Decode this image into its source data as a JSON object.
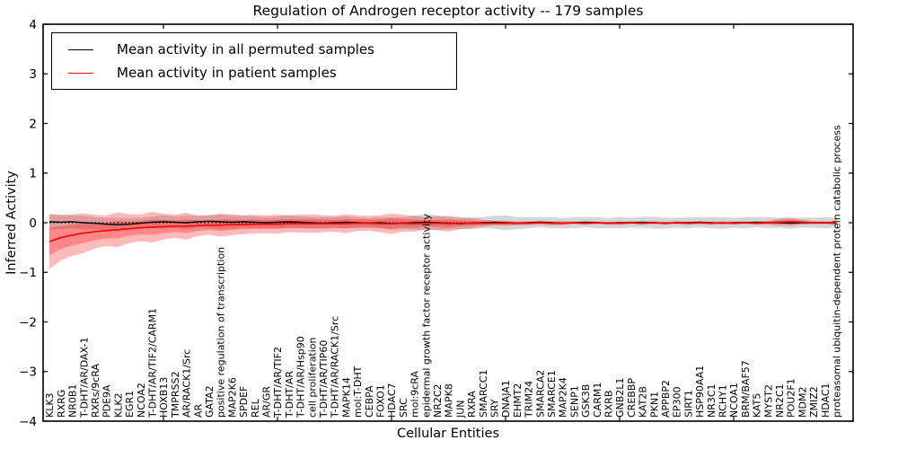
{
  "figure": {
    "title": "Regulation of Androgen receptor activity -- 179 samples",
    "xlabel": "Cellular Entities",
    "ylabel": "Inferred Activity"
  },
  "legend": {
    "position": "upper left",
    "entries": [
      {
        "label": "Mean activity in all permuted samples",
        "color": "#000000"
      },
      {
        "label": "Mean activity in patient samples",
        "color": "#ff0000"
      }
    ]
  },
  "chart_data": {
    "type": "line",
    "title": "Regulation of Androgen receptor activity -- 179 samples",
    "xlabel": "Cellular Entities",
    "ylabel": "Inferred Activity",
    "ylim": [
      -4,
      4
    ],
    "y_ticks": [
      -4,
      -3,
      -2,
      -1,
      0,
      1,
      2,
      3,
      4
    ],
    "y_tick_labels": [
      "−4",
      "−3",
      "−2",
      "−1",
      "0",
      "1",
      "2",
      "3",
      "4"
    ],
    "x_major_tick_every": 10,
    "grid": false,
    "legend_position": "upper left",
    "zero_reference_line": {
      "y": 0,
      "style": "dotted",
      "color": "#000000"
    },
    "categories": [
      "KLK3",
      "RXRG",
      "NR0B1",
      "T-DHT/AR/DAX-1",
      "RXRs/9cRA",
      "PDE9A",
      "KLK2",
      "EGR1",
      "NCOA2",
      "T-DHT/AR/TIF2/CARM1",
      "HOXB13",
      "TMPRSS2",
      "AR/RACK1/Src",
      "AR",
      "GATA2",
      "positive regulation of transcription",
      "MAP2K6",
      "SPDEF",
      "REL",
      "AR/GR",
      "T-DHT/AR/TIF2",
      "T-DHT/AR",
      "T-DHT/AR/Hsp90",
      "cell proliferation",
      "T-DHT/AR/TIP60",
      "T-DHT/AR/RACK1/Src",
      "MAPK14",
      "mol:T-DHT",
      "CEBPA",
      "FOXO1",
      "HDAC7",
      "SRC",
      "mol:9cRA",
      "epidermal growth factor receptor activity",
      "NR2C2",
      "MAPK8",
      "JUN",
      "RXRA",
      "SMARCC1",
      "SRY",
      "DNAJA1",
      "EHMT2",
      "TRIM24",
      "SMARCA2",
      "SMARCE1",
      "MAP2K4",
      "SENP1",
      "GSK3B",
      "CARM1",
      "RXRB",
      "GNB2L1",
      "CREBBP",
      "KAT2B",
      "PKN1",
      "APPBP2",
      "EP300",
      "SIRT1",
      "HSP90AA1",
      "NR3C1",
      "RCHY1",
      "NCOA1",
      "BRM/BAF57",
      "KAT5",
      "MYST2",
      "NR2C1",
      "POU2F1",
      "MDM2",
      "ZMIZ2",
      "HDAC1",
      "proteasomal ubiquitin-dependent protein catabolic process"
    ],
    "series": [
      {
        "name": "Mean activity in all permuted samples",
        "color": "#000000",
        "line_width": 1.4,
        "band_color": "rgba(0,0,0,0.16)",
        "band_inner_factor": 1,
        "values": [
          0.02,
          0.01,
          0.02,
          0.0,
          -0.01,
          -0.03,
          -0.04,
          -0.03,
          -0.01,
          0.01,
          0.02,
          0.01,
          0.0,
          0.02,
          0.03,
          0.02,
          0.01,
          0.02,
          0.01,
          0.0,
          0.01,
          0.02,
          0.01,
          0.0,
          -0.01,
          0.0,
          0.01,
          0.0,
          -0.01,
          0.0,
          -0.02,
          -0.01,
          0.0,
          0.01,
          0.0,
          -0.01,
          -0.02,
          -0.01,
          0.0,
          0.01,
          0.0,
          -0.01,
          0.0,
          0.01,
          0.0,
          -0.01,
          0.0,
          0.01,
          0.0,
          -0.01,
          0.0,
          0.0,
          0.01,
          0.0,
          -0.01,
          0.0,
          0.0,
          0.01,
          0.0,
          -0.01,
          0.0,
          0.0,
          0.01,
          0.0,
          0.0,
          -0.01,
          0.0,
          0.0,
          0.0,
          0.0
        ],
        "band": [
          0.15,
          0.14,
          0.13,
          0.14,
          0.12,
          0.13,
          0.14,
          0.12,
          0.11,
          0.12,
          0.13,
          0.12,
          0.14,
          0.12,
          0.13,
          0.15,
          0.13,
          0.12,
          0.12,
          0.11,
          0.12,
          0.13,
          0.12,
          0.11,
          0.12,
          0.11,
          0.12,
          0.11,
          0.1,
          0.11,
          0.13,
          0.12,
          0.14,
          0.17,
          0.15,
          0.12,
          0.11,
          0.12,
          0.11,
          0.13,
          0.15,
          0.12,
          0.11,
          0.1,
          0.11,
          0.1,
          0.11,
          0.1,
          0.11,
          0.1,
          0.11,
          0.1,
          0.11,
          0.12,
          0.11,
          0.1,
          0.11,
          0.1,
          0.11,
          0.12,
          0.1,
          0.11,
          0.1,
          0.11,
          0.1,
          0.11,
          0.1,
          0.1,
          0.11,
          0.1
        ]
      },
      {
        "name": "Mean activity in patient samples",
        "color": "#ff0000",
        "line_width": 1.6,
        "band_color": "rgba(255,0,0,0.27)",
        "band_inner_factor": 0.5,
        "values": [
          -0.38,
          -0.3,
          -0.25,
          -0.21,
          -0.18,
          -0.16,
          -0.14,
          -0.12,
          -0.1,
          -0.09,
          -0.08,
          -0.07,
          -0.07,
          -0.06,
          -0.05,
          -0.05,
          -0.04,
          -0.04,
          -0.03,
          -0.03,
          -0.03,
          -0.02,
          -0.02,
          -0.02,
          -0.02,
          -0.02,
          -0.02,
          -0.01,
          -0.01,
          -0.02,
          -0.02,
          -0.01,
          -0.02,
          -0.01,
          -0.01,
          -0.02,
          -0.01,
          -0.01,
          -0.01,
          -0.01,
          -0.01,
          -0.01,
          -0.01,
          0.0,
          -0.01,
          -0.01,
          0.0,
          -0.01,
          0.0,
          -0.01,
          -0.01,
          0.0,
          -0.01,
          0.0,
          -0.01,
          0.0,
          -0.01,
          0.0,
          -0.01,
          0.0,
          -0.01,
          0.0,
          -0.01,
          0.0,
          0.01,
          0.02,
          0.01,
          0.0,
          0.0,
          -0.01
        ],
        "band": [
          0.55,
          0.46,
          0.42,
          0.4,
          0.34,
          0.31,
          0.35,
          0.29,
          0.27,
          0.31,
          0.26,
          0.23,
          0.27,
          0.21,
          0.19,
          0.23,
          0.21,
          0.19,
          0.19,
          0.18,
          0.19,
          0.17,
          0.18,
          0.19,
          0.17,
          0.16,
          0.19,
          0.16,
          0.15,
          0.17,
          0.21,
          0.17,
          0.16,
          0.12,
          0.14,
          0.16,
          0.12,
          0.1,
          0.07,
          0.05,
          0.05,
          0.04,
          0.04,
          0.04,
          0.04,
          0.04,
          0.03,
          0.03,
          0.03,
          0.03,
          0.03,
          0.03,
          0.03,
          0.03,
          0.03,
          0.03,
          0.03,
          0.03,
          0.03,
          0.03,
          0.03,
          0.03,
          0.03,
          0.04,
          0.07,
          0.08,
          0.05,
          0.03,
          0.03,
          0.04
        ]
      }
    ]
  }
}
